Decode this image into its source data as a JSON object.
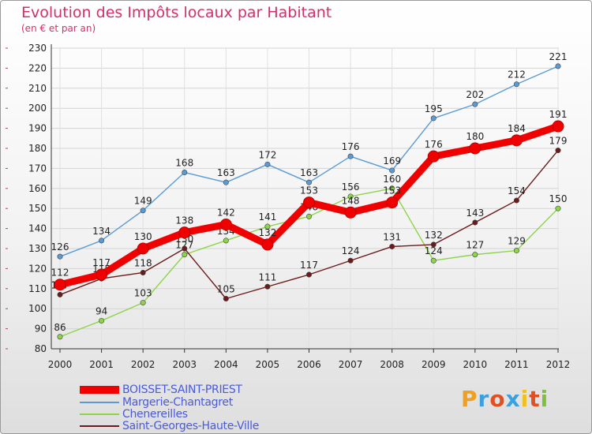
{
  "chart_data": {
    "type": "line",
    "title": "Evolution des Impôts locaux par Habitant",
    "subtitle": "(en € et par an)",
    "x": [
      "2000",
      "2001",
      "2002",
      "2003",
      "2004",
      "2005",
      "2006",
      "2007",
      "2008",
      "2009",
      "2010",
      "2011",
      "2012"
    ],
    "ylim": [
      80,
      230
    ],
    "yticks": [
      80,
      90,
      100,
      110,
      120,
      130,
      140,
      150,
      160,
      170,
      180,
      190,
      200,
      210,
      220,
      230
    ],
    "series": [
      {
        "name": "Margerie-Chantagret",
        "color": "#5b9bd5",
        "values": [
          126,
          134,
          149,
          168,
          163,
          172,
          163,
          176,
          169,
          195,
          202,
          212,
          221
        ]
      },
      {
        "name": "Chenereilles",
        "color": "#8ed44a",
        "values": [
          86,
          94,
          103,
          127,
          134,
          141,
          146,
          156,
          160,
          124,
          127,
          129,
          150
        ]
      },
      {
        "name": "Saint-Georges-Haute-Ville",
        "color": "#6b1a1a",
        "values": [
          107,
          115,
          118,
          130,
          105,
          111,
          117,
          124,
          131,
          132,
          143,
          154,
          179
        ]
      },
      {
        "name": "BOISSET-SAINT-PRIEST",
        "color": "#f00000",
        "values": [
          112,
          117,
          130,
          138,
          142,
          132,
          153,
          148,
          153,
          176,
          180,
          184,
          191
        ]
      }
    ],
    "legend_order": [
      "BOISSET-SAINT-PRIEST",
      "Margerie-Chantagret",
      "Chenereilles",
      "Saint-Georges-Haute-Ville"
    ]
  },
  "logo": {
    "letters": [
      "P",
      "r",
      "o",
      "x",
      "i",
      "t",
      "i"
    ],
    "colors": [
      "#f0a020",
      "#3aa0e0",
      "#e05020",
      "#3aa0e0",
      "#f0c020",
      "#e05020",
      "#80c040"
    ]
  }
}
